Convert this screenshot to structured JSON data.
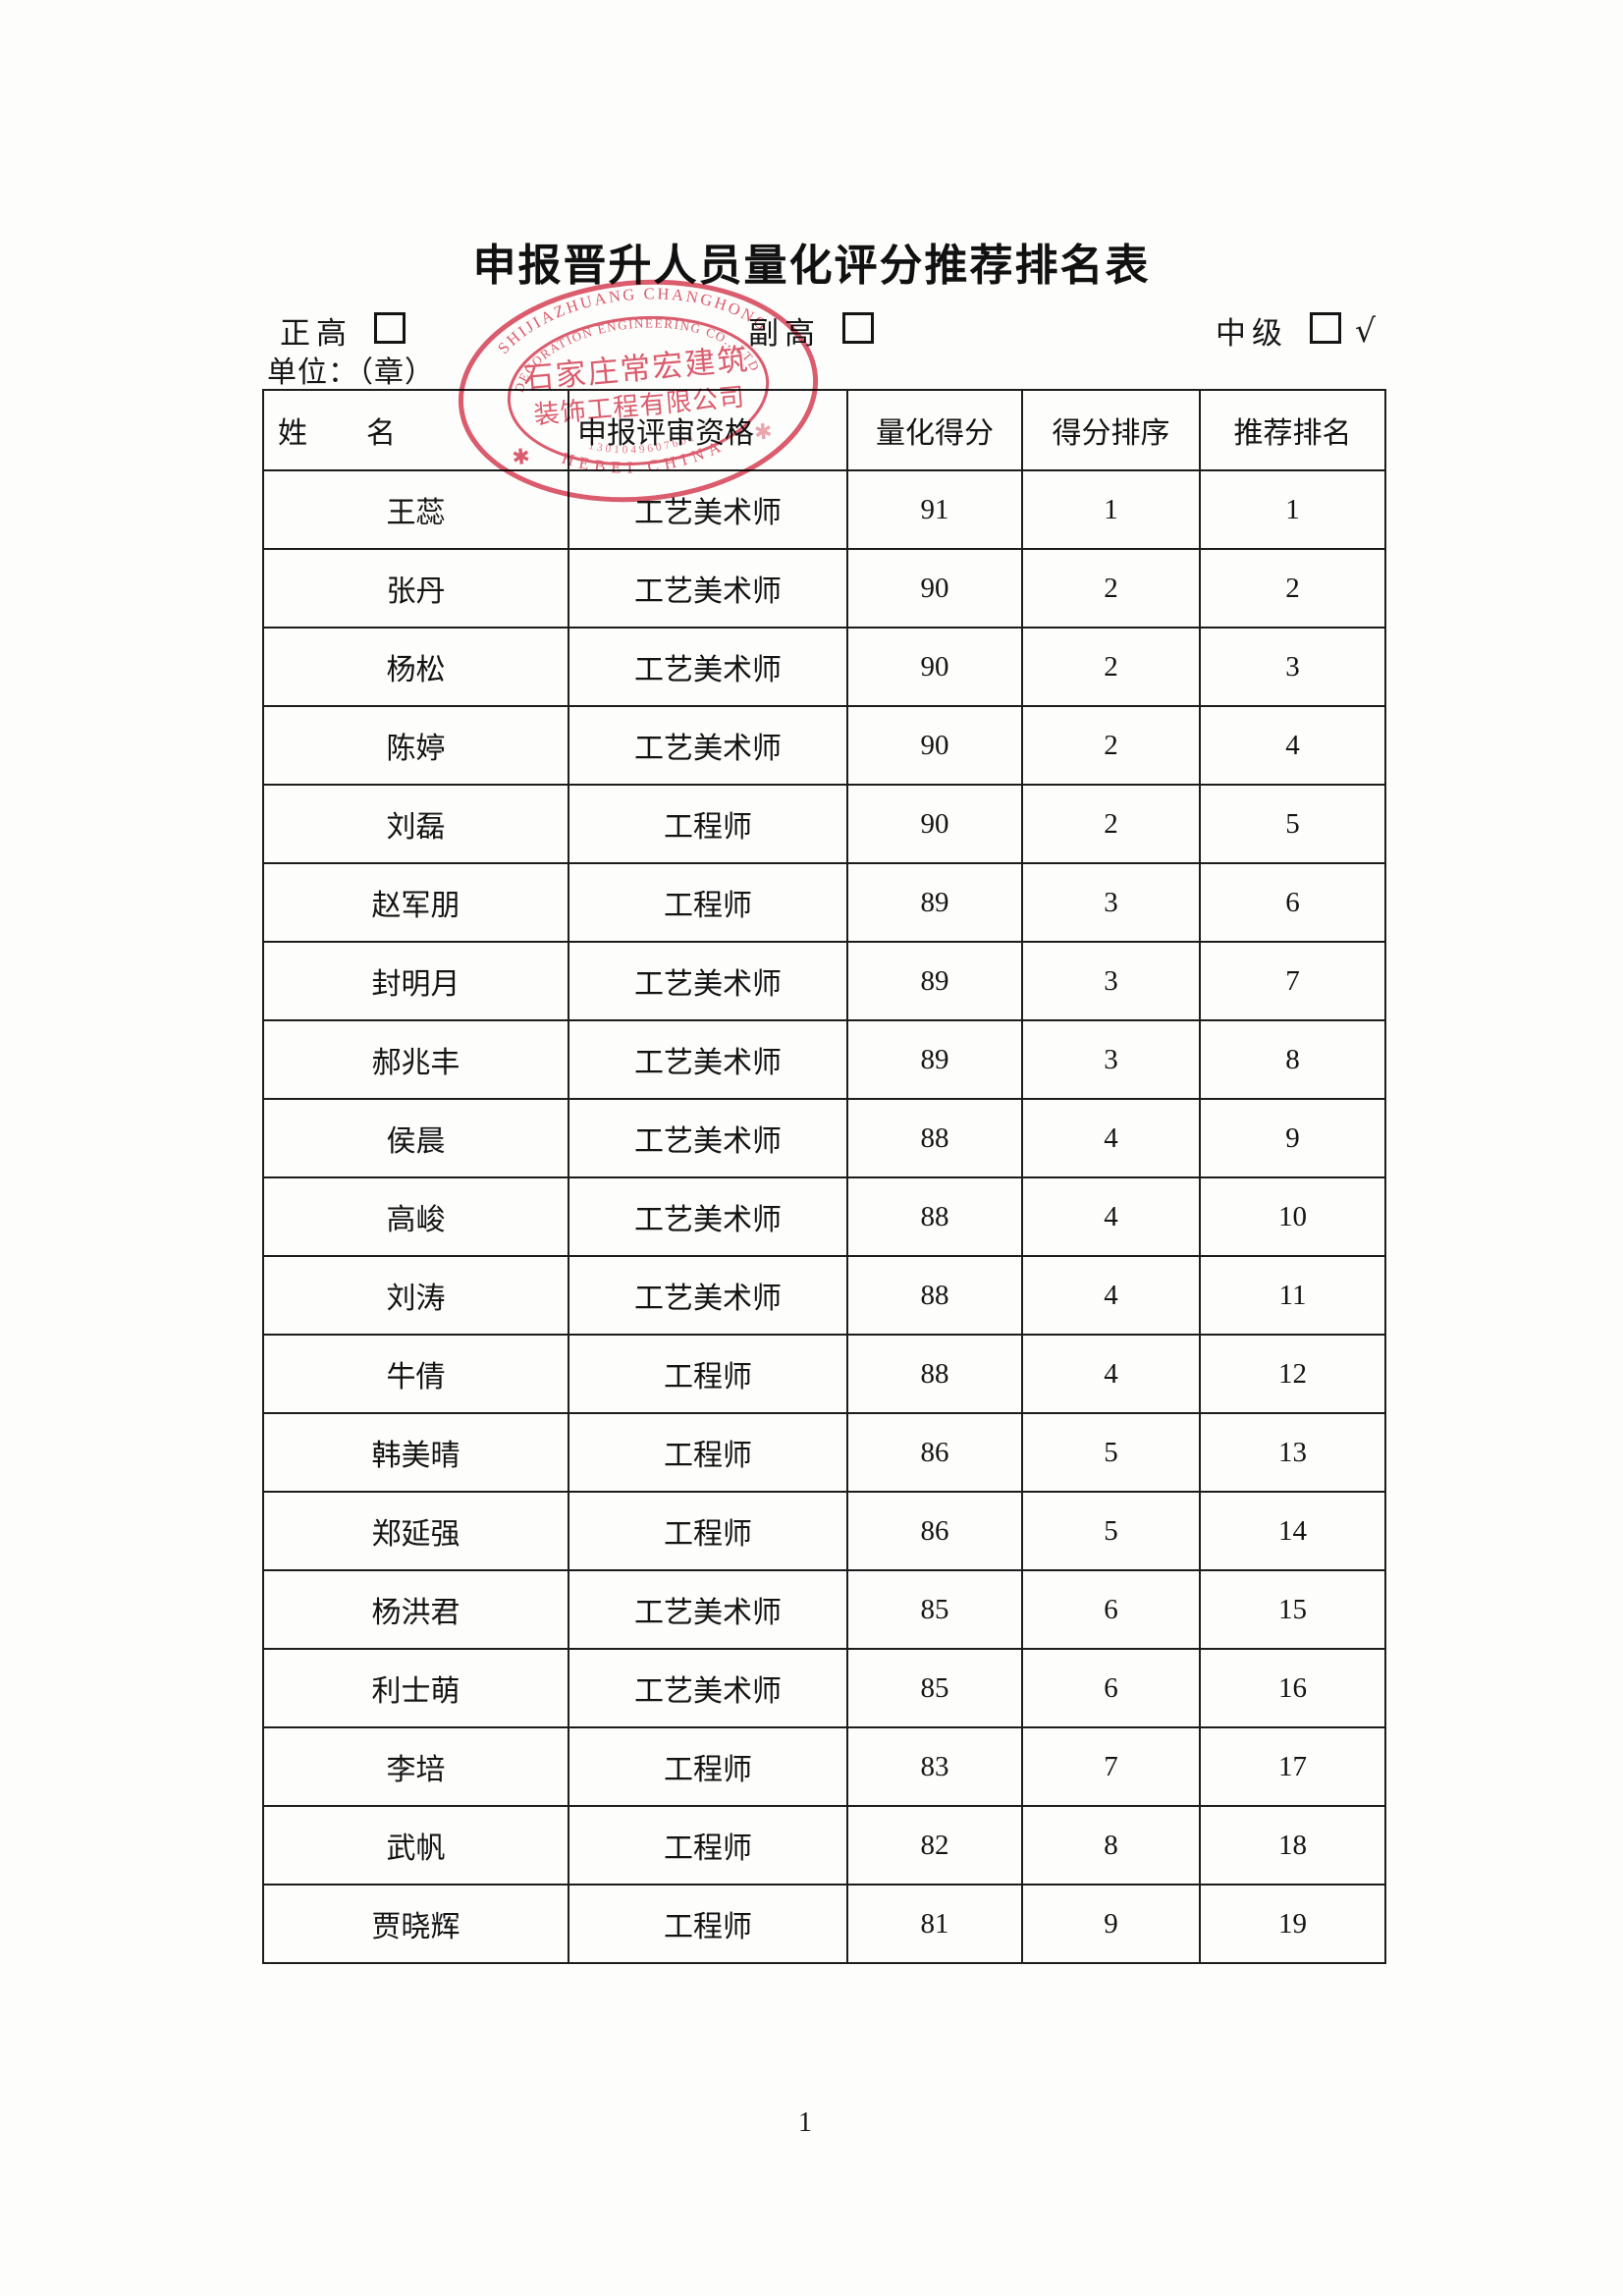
{
  "page": {
    "title": "申报晋升人员量化评分推荐排名表",
    "unit_label": "单位：（章）",
    "page_number": "1"
  },
  "levels": [
    {
      "label": "正高",
      "checked": false,
      "checkmark": ""
    },
    {
      "label": "副高",
      "checked": false,
      "checkmark": ""
    },
    {
      "label": "中级",
      "checked": true,
      "checkmark": "√"
    }
  ],
  "stamp": {
    "arc_top": "SHIJIAZHUANG CHANGHONG",
    "arc_inner": "DECORATION ENGINEERING CO., LTD",
    "center_line1": "石家庄常宏建筑",
    "center_line2": "装饰工程有限公司",
    "arc_bottom": "HEBEI CHINA",
    "serial": "1301049607601",
    "star_left": "✱",
    "star_right": "✱",
    "color": "#d8465a"
  },
  "table": {
    "headers": [
      "姓　　名",
      "申报评审资格",
      "量化得分",
      "得分排序",
      "推荐排名"
    ],
    "rows": [
      [
        "王蕊",
        "工艺美术师",
        "91",
        "1",
        "1"
      ],
      [
        "张丹",
        "工艺美术师",
        "90",
        "2",
        "2"
      ],
      [
        "杨松",
        "工艺美术师",
        "90",
        "2",
        "3"
      ],
      [
        "陈婷",
        "工艺美术师",
        "90",
        "2",
        "4"
      ],
      [
        "刘磊",
        "工程师",
        "90",
        "2",
        "5"
      ],
      [
        "赵军朋",
        "工程师",
        "89",
        "3",
        "6"
      ],
      [
        "封明月",
        "工艺美术师",
        "89",
        "3",
        "7"
      ],
      [
        "郝兆丰",
        "工艺美术师",
        "89",
        "3",
        "8"
      ],
      [
        "侯晨",
        "工艺美术师",
        "88",
        "4",
        "9"
      ],
      [
        "高峻",
        "工艺美术师",
        "88",
        "4",
        "10"
      ],
      [
        "刘涛",
        "工艺美术师",
        "88",
        "4",
        "11"
      ],
      [
        "牛倩",
        "工程师",
        "88",
        "4",
        "12"
      ],
      [
        "韩美晴",
        "工程师",
        "86",
        "5",
        "13"
      ],
      [
        "郑延强",
        "工程师",
        "86",
        "5",
        "14"
      ],
      [
        "杨洪君",
        "工艺美术师",
        "85",
        "6",
        "15"
      ],
      [
        "利士萌",
        "工艺美术师",
        "85",
        "6",
        "16"
      ],
      [
        "李培",
        "工程师",
        "83",
        "7",
        "17"
      ],
      [
        "武帆",
        "工程师",
        "82",
        "8",
        "18"
      ],
      [
        "贾晓辉",
        "工程师",
        "81",
        "9",
        "19"
      ]
    ]
  }
}
